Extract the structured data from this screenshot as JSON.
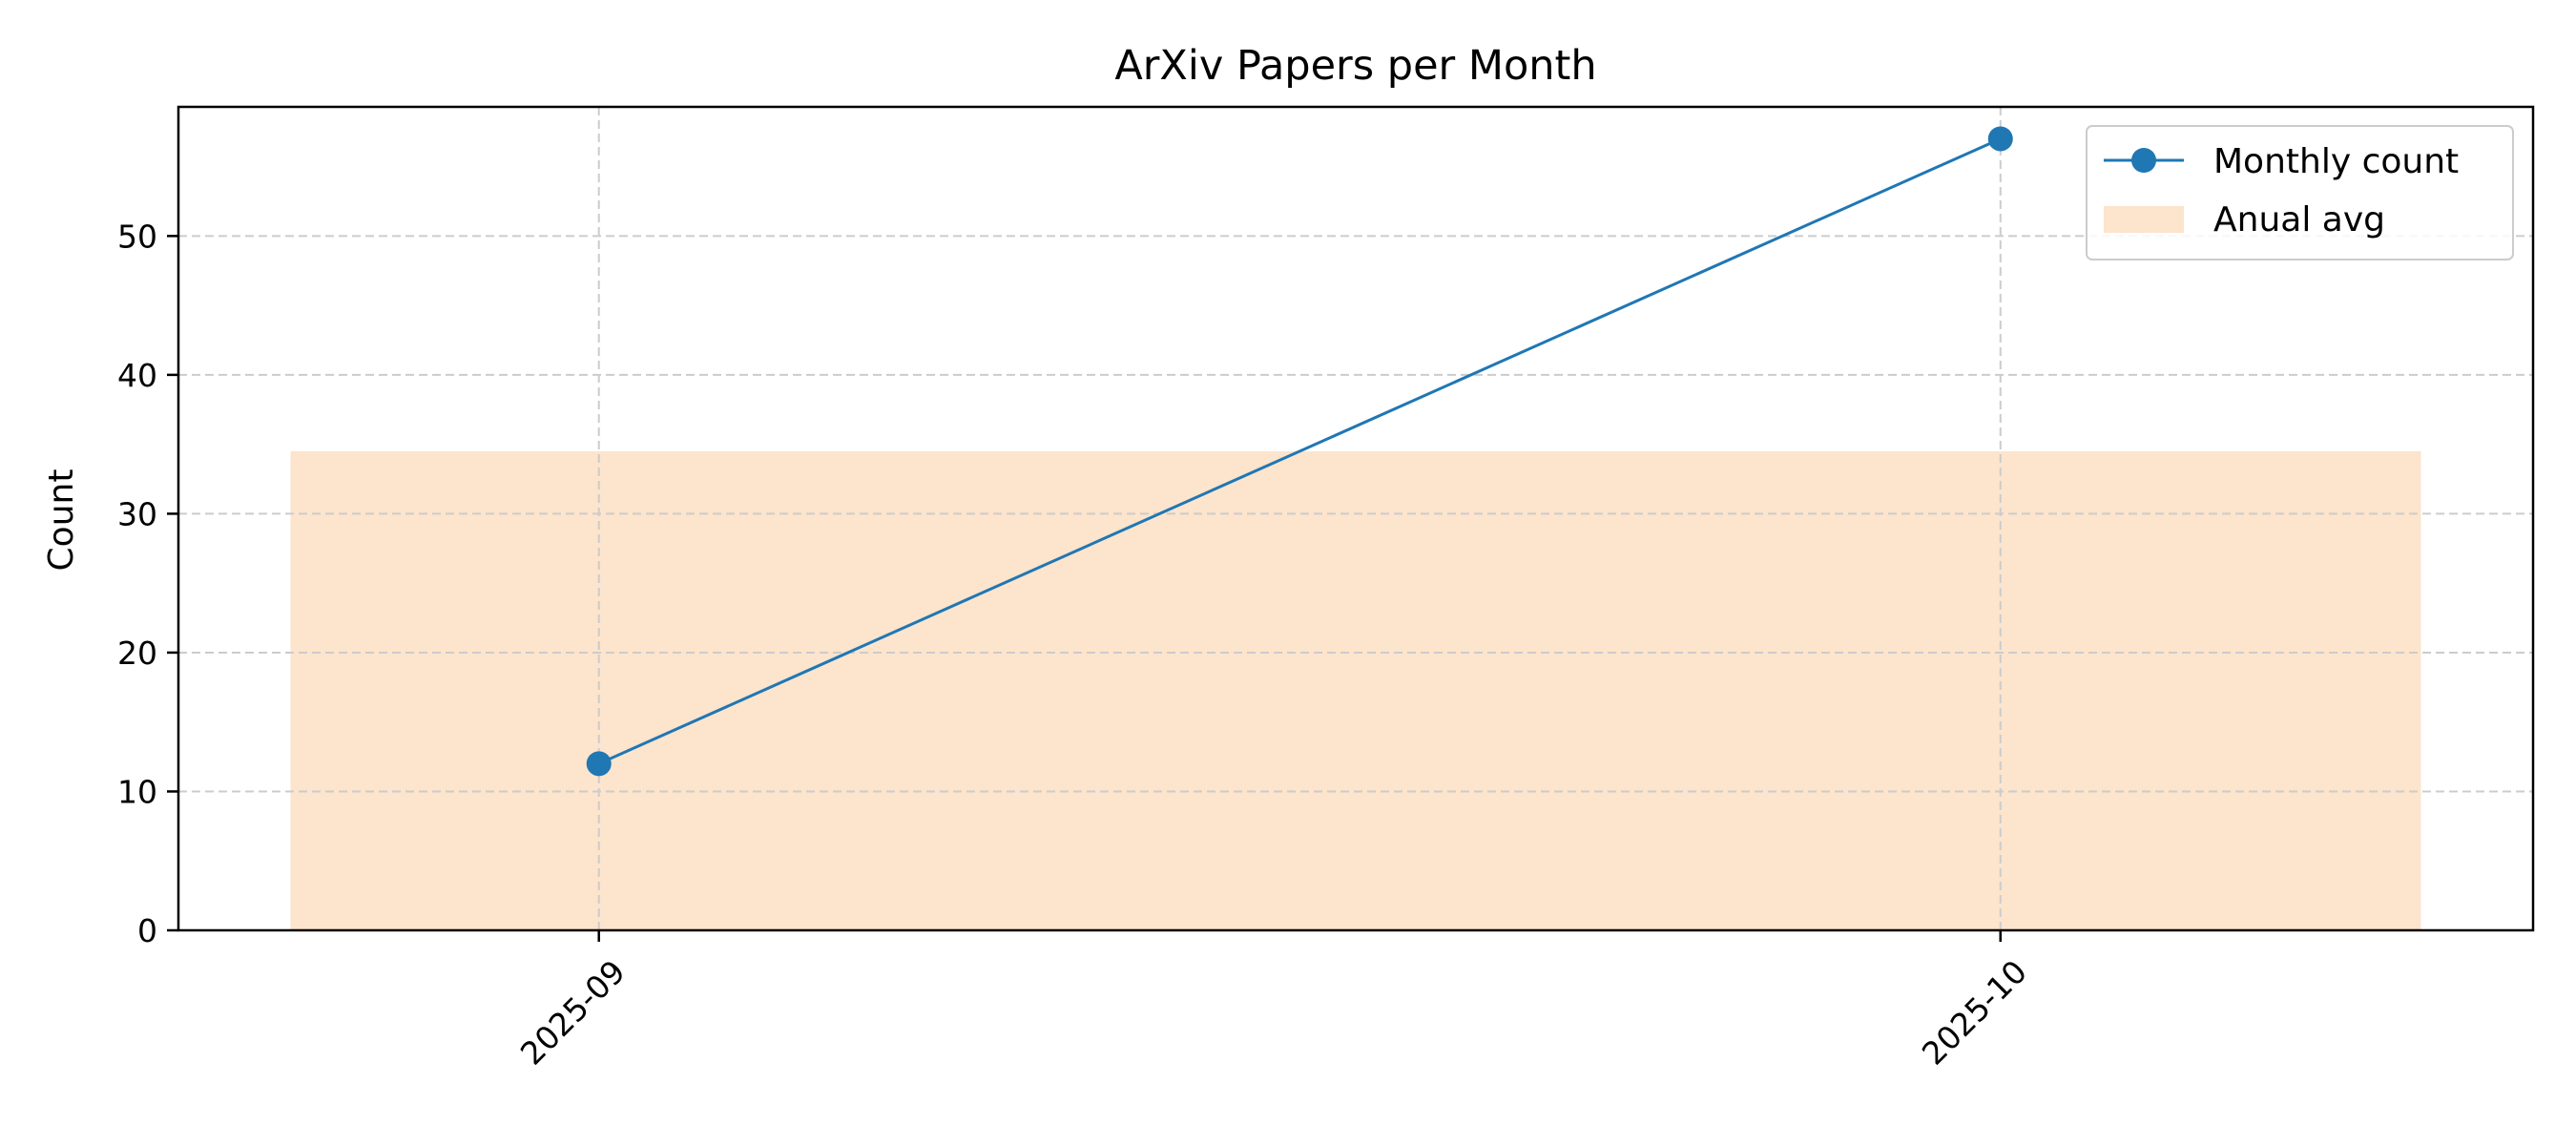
{
  "chart_data": {
    "type": "line",
    "title": "ArXiv Papers per Month",
    "xlabel": "",
    "ylabel": "Count",
    "categories": [
      "2025-09",
      "2025-10"
    ],
    "series": [
      {
        "name": "Monthly count",
        "type": "line",
        "values": [
          12,
          57
        ],
        "color": "#1f77b4",
        "marker": "circle"
      }
    ],
    "average_band": {
      "name": "Anual avg",
      "value": 34.5,
      "color": "#fde4cc"
    },
    "ylim": [
      0,
      59.3
    ],
    "yticks": [
      0,
      10,
      20,
      30,
      40,
      50
    ],
    "grid": true,
    "legend": "top-right"
  }
}
